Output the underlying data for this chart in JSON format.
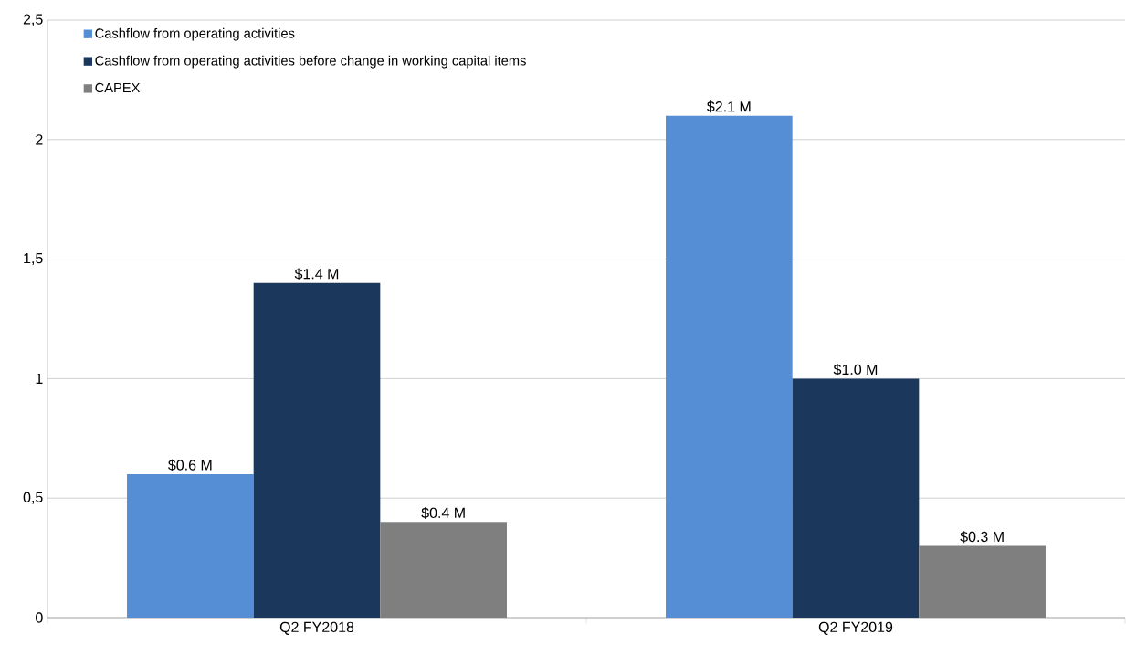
{
  "chart_data": {
    "type": "bar",
    "categories": [
      "Q2 FY2018",
      "Q2 FY2019"
    ],
    "series": [
      {
        "name": "Cashflow from operating activities",
        "color": "#558ed5",
        "values": [
          0.6,
          2.1
        ],
        "value_labels": [
          "$0.6 M",
          "$2.1 M"
        ]
      },
      {
        "name": "Cashflow from operating activities before change in working capital items",
        "color": "#1b375c",
        "values": [
          1.4,
          1.0
        ],
        "value_labels": [
          "$1.4 M",
          "$1.0 M"
        ]
      },
      {
        "name": "CAPEX",
        "color": "#7f7f7f",
        "values": [
          0.4,
          0.3
        ],
        "value_labels": [
          "$0.4 M",
          "$0.3 M"
        ]
      }
    ],
    "ylim": [
      0,
      2.5
    ],
    "yticks": [
      0,
      {
        "value": 0.5,
        "label": "0,5"
      },
      1,
      {
        "value": 1.5,
        "label": "1,5"
      },
      2,
      {
        "value": 2.5,
        "label": "2,5"
      }
    ],
    "grid": "y",
    "legend": "top left"
  }
}
